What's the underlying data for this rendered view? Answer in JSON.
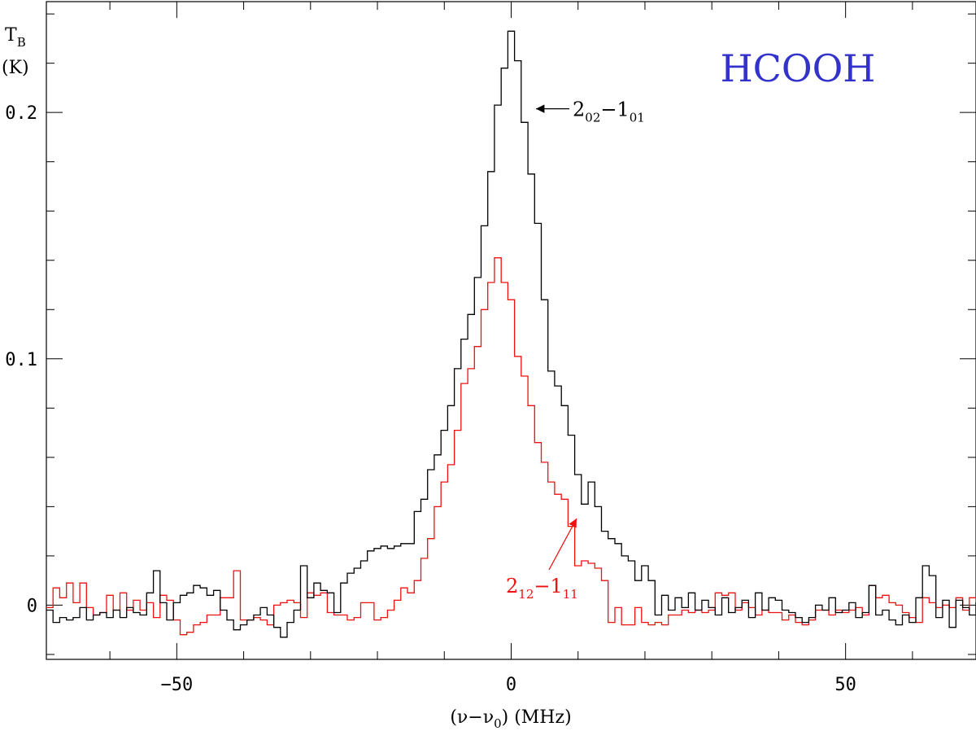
{
  "chart_data": {
    "type": "line",
    "style": "step",
    "title": "HCOOH",
    "title_color": "#3333cc",
    "xlabel": {
      "main": "(ν−ν",
      "sub": "0",
      "rest": ") (MHz)"
    },
    "ylabel": {
      "main": "T",
      "sub": "B",
      "unit": "(K)"
    },
    "xlim": [
      -69.5,
      69.5
    ],
    "ylim": [
      -0.022,
      0.245
    ],
    "x_ticks": [
      -50,
      0,
      50
    ],
    "x_tick_labels": [
      "−50",
      "0",
      "50"
    ],
    "y_ticks": [
      0,
      0.1,
      0.2
    ],
    "y_tick_labels": [
      "0",
      "0.1",
      "0.2"
    ],
    "grid": false,
    "legend": "none",
    "series": [
      {
        "name": "2_02−1_01",
        "color": "#000000",
        "x_start": -69.5,
        "x_step": 1.0,
        "values": [
          -0.002,
          -0.007,
          -0.005,
          -0.006,
          -0.005,
          -0.001,
          -0.006,
          -0.004,
          -0.003,
          -0.005,
          -0.002,
          -0.005,
          -0.001,
          -0.003,
          -0.004,
          0.005,
          0.014,
          0.001,
          -0.006,
          0.001,
          0.004,
          0.005,
          0.008,
          0.007,
          0.004,
          0.006,
          -0.002,
          -0.006,
          -0.01,
          -0.008,
          -0.006,
          -0.004,
          -0.001,
          -0.004,
          -0.009,
          -0.013,
          -0.007,
          -0.002,
          0.016,
          0.003,
          0.009,
          0.006,
          0.005,
          -0.003,
          0.009,
          0.013,
          0.015,
          0.018,
          0.022,
          0.023,
          0.024,
          0.023,
          0.024,
          0.025,
          0.025,
          0.038,
          0.043,
          0.055,
          0.061,
          0.071,
          0.081,
          0.096,
          0.108,
          0.118,
          0.133,
          0.154,
          0.176,
          0.203,
          0.218,
          0.233,
          0.221,
          0.196,
          0.175,
          0.155,
          0.124,
          0.095,
          0.089,
          0.081,
          0.069,
          0.053,
          0.041,
          0.05,
          0.04,
          0.03,
          0.027,
          0.025,
          0.02,
          0.018,
          0.01,
          0.016,
          0.01,
          -0.004,
          0.004,
          -0.002,
          0.003,
          -0.001,
          0.005,
          -0.002,
          0.002,
          -0.001,
          -0.004,
          0.003,
          -0.003,
          -0.001,
          0.002,
          -0.005,
          0.005,
          -0.002,
          0.003,
          0.002,
          -0.002,
          -0.003,
          -0.005,
          -0.007,
          -0.005,
          0.0,
          -0.002,
          0.003,
          -0.003,
          -0.002,
          0.001,
          -0.005,
          -0.003,
          0.008,
          -0.004,
          -0.002,
          -0.006,
          -0.008,
          -0.004,
          -0.007,
          0.003,
          0.016,
          0.012,
          -0.005,
          0.002,
          -0.009,
          0.002,
          -0.001,
          -0.004,
          0.001
        ]
      },
      {
        "name": "2_12−1_11",
        "color": "#ee1111",
        "x_start": -69.5,
        "x_step": 1.0,
        "values": [
          -0.001,
          0.007,
          0.003,
          0.009,
          0.001,
          0.009,
          -0.001,
          -0.004,
          -0.003,
          0.004,
          -0.002,
          0.005,
          -0.002,
          0.002,
          -0.002,
          0.001,
          -0.005,
          0.004,
          0.002,
          -0.006,
          -0.012,
          -0.011,
          -0.008,
          -0.007,
          -0.004,
          -0.004,
          0.003,
          0.003,
          0.014,
          -0.006,
          -0.006,
          -0.005,
          -0.006,
          -0.008,
          0.0,
          0.001,
          0.002,
          0.001,
          -0.005,
          0.005,
          0.004,
          0.005,
          -0.003,
          -0.004,
          -0.004,
          -0.006,
          -0.005,
          0.001,
          0.001,
          -0.006,
          -0.005,
          -0.002,
          0.002,
          0.007,
          0.005,
          0.01,
          0.019,
          0.027,
          0.04,
          0.05,
          0.057,
          0.071,
          0.09,
          0.096,
          0.105,
          0.12,
          0.131,
          0.141,
          0.131,
          0.124,
          0.101,
          0.093,
          0.081,
          0.066,
          0.058,
          0.05,
          0.045,
          0.043,
          0.032,
          0.016,
          0.018,
          0.017,
          0.015,
          0.01,
          -0.007,
          -0.001,
          -0.008,
          -0.008,
          -0.001,
          -0.007,
          -0.008,
          -0.007,
          -0.008,
          -0.004,
          -0.004,
          -0.002,
          -0.003,
          -0.002,
          -0.003,
          -0.002,
          0.005,
          0.004,
          0.005,
          -0.002,
          0.001,
          -0.001,
          -0.004,
          -0.002,
          -0.003,
          -0.003,
          -0.006,
          -0.004,
          -0.007,
          -0.008,
          -0.006,
          -0.002,
          -0.002,
          -0.004,
          -0.002,
          -0.003,
          -0.002,
          -0.001,
          -0.004,
          0.008,
          0.003,
          0.004,
          0.001,
          0.0,
          -0.003,
          -0.005,
          -0.007,
          0.003,
          0.001,
          -0.001,
          0.0,
          -0.001,
          0.003,
          -0.002,
          0.003,
          -0.003
        ]
      }
    ],
    "annotations": [
      {
        "id": "black",
        "text_main": "2",
        "text_sub1": "02",
        "text_mid": "−1",
        "text_sub2": "01",
        "color": "#000000",
        "label_x": 2.2,
        "label_y": 0.2015,
        "arrow_from": [
          2.2,
          0.2015
        ],
        "arrow_to": [
          3.5,
          0.2015
        ]
      },
      {
        "id": "red",
        "text_main": "2",
        "text_sub1": "12",
        "text_mid": "−1",
        "text_sub2": "11",
        "color": "#ee1111",
        "label_x": 9.5,
        "label_y": 0.0,
        "arrow_from": [
          6.8,
          0.012
        ],
        "arrow_to": [
          10.5,
          0.032
        ]
      }
    ]
  }
}
